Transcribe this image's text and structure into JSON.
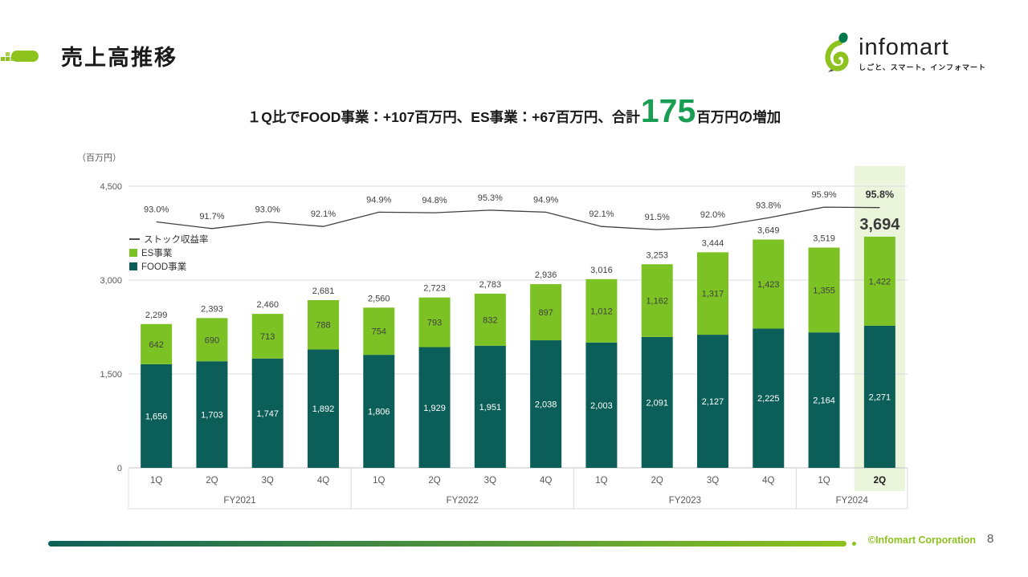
{
  "header": {
    "title": "売上高推移"
  },
  "logo": {
    "name": "infomart",
    "tagline": "しごと、スマート。インフォマート"
  },
  "subtitle": {
    "prefix": "１Q比でFOOD事業：+107百万円、ES事業：+67百万円、合計",
    "big_value": "175",
    "suffix": "百万円の増加"
  },
  "chart_data": {
    "type": "bar",
    "stacked": true,
    "unit_label": "（百万円）",
    "ylim": [
      0,
      4500
    ],
    "y_ticks": [
      0,
      1500,
      3000,
      4500
    ],
    "groups": [
      {
        "label": "FY2021",
        "quarters": [
          "1Q",
          "2Q",
          "3Q",
          "4Q"
        ]
      },
      {
        "label": "FY2022",
        "quarters": [
          "1Q",
          "2Q",
          "3Q",
          "4Q"
        ]
      },
      {
        "label": "FY2023",
        "quarters": [
          "1Q",
          "2Q",
          "3Q",
          "4Q"
        ]
      },
      {
        "label": "FY2024",
        "quarters": [
          "1Q",
          "2Q"
        ]
      }
    ],
    "categories": [
      "1Q",
      "2Q",
      "3Q",
      "4Q",
      "1Q",
      "2Q",
      "3Q",
      "4Q",
      "1Q",
      "2Q",
      "3Q",
      "4Q",
      "1Q",
      "2Q"
    ],
    "series": [
      {
        "name": "FOOD事業",
        "color": "#0b5f58",
        "values": [
          1656,
          1703,
          1747,
          1892,
          1806,
          1929,
          1951,
          2038,
          2003,
          2091,
          2127,
          2225,
          2164,
          2271
        ]
      },
      {
        "name": "ES事業",
        "color": "#7cc225",
        "values": [
          642,
          690,
          713,
          788,
          754,
          793,
          832,
          897,
          1012,
          1162,
          1317,
          1423,
          1355,
          1422
        ]
      }
    ],
    "totals": [
      2299,
      2393,
      2460,
      2681,
      2560,
      2723,
      2783,
      2936,
      3016,
      3253,
      3444,
      3649,
      3519,
      3694
    ],
    "line_series": {
      "name": "ストック収益率",
      "unit": "%",
      "color": "#404040",
      "values": [
        93.0,
        91.7,
        93.0,
        92.1,
        94.9,
        94.8,
        95.3,
        94.9,
        92.1,
        91.5,
        92.0,
        93.8,
        95.9,
        95.8
      ]
    },
    "highlight": {
      "index": 13,
      "group": "FY2024",
      "quarter": "2Q",
      "color": "#ebf5dc"
    },
    "grid": true,
    "legend_position": "inside-left"
  },
  "footer": {
    "copyright": "©Infomart Corporation",
    "page": "8"
  }
}
